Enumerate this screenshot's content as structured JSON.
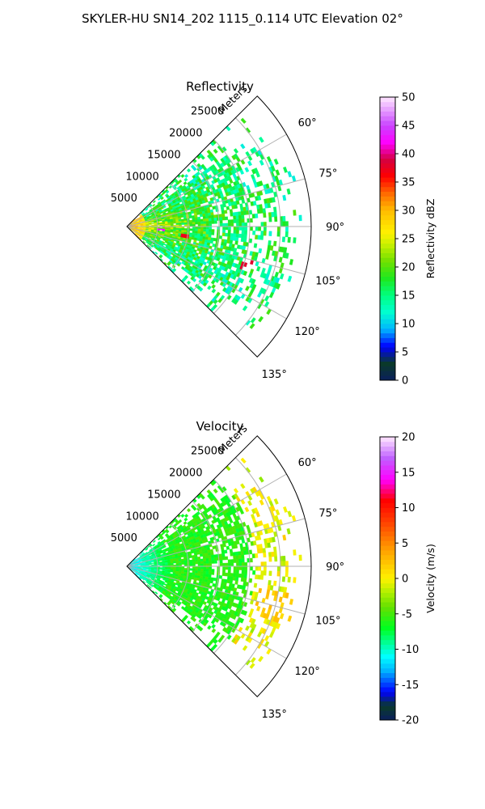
{
  "figure_title": "SKYLER-HU  SN14_202  1115_0.114 UTC Elevation 02°",
  "colors": {
    "sector_outline": "#000000",
    "grid": "#b0b0b0",
    "background": "#ffffff"
  },
  "chart_data": [
    {
      "type": "heatmap",
      "projection": "polar-sector",
      "title": "Reflectivity",
      "radial_axis_label": "Meters",
      "radial_ticks": [
        "5000",
        "10000",
        "15000",
        "20000",
        "25000"
      ],
      "radial_range": [
        0,
        30000
      ],
      "angular_ticks": [
        "60°",
        "75°",
        "90°",
        "105°",
        "120°",
        "135°"
      ],
      "angular_range_deg": [
        45,
        135
      ],
      "grid": true,
      "colorbar": {
        "label": "Reflectivity dBZ",
        "range": [
          0,
          50
        ],
        "ticks": [
          "0",
          "5",
          "10",
          "15",
          "20",
          "25",
          "30",
          "35",
          "40",
          "45",
          "50"
        ]
      },
      "field_summary": "Strongest echoes 30–40 dBZ near the radar between 70° and 110°; widespread 15–25 dBZ echoes out to about 25 km; isolated 35–40 dBZ cells near 105°–115°."
    },
    {
      "type": "heatmap",
      "projection": "polar-sector",
      "title": "Velocity",
      "radial_axis_label": "Meters",
      "radial_ticks": [
        "5000",
        "10000",
        "15000",
        "20000",
        "25000"
      ],
      "radial_range": [
        0,
        30000
      ],
      "angular_ticks": [
        "60°",
        "75°",
        "90°",
        "105°",
        "120°",
        "135°"
      ],
      "angular_range_deg": [
        45,
        135
      ],
      "grid": true,
      "colorbar": {
        "label": "Velocity (m/s)",
        "range": [
          -20,
          20
        ],
        "ticks": [
          "-20",
          "-15",
          "-10",
          "-5",
          "0",
          "5",
          "10",
          "15",
          "20"
        ]
      },
      "field_summary": "Velocities near -12 m/s close to the radar, about -5 to -7 m/s across most of the sector, and 0 to +2 m/s near the far edge around 60° and 105°."
    }
  ]
}
